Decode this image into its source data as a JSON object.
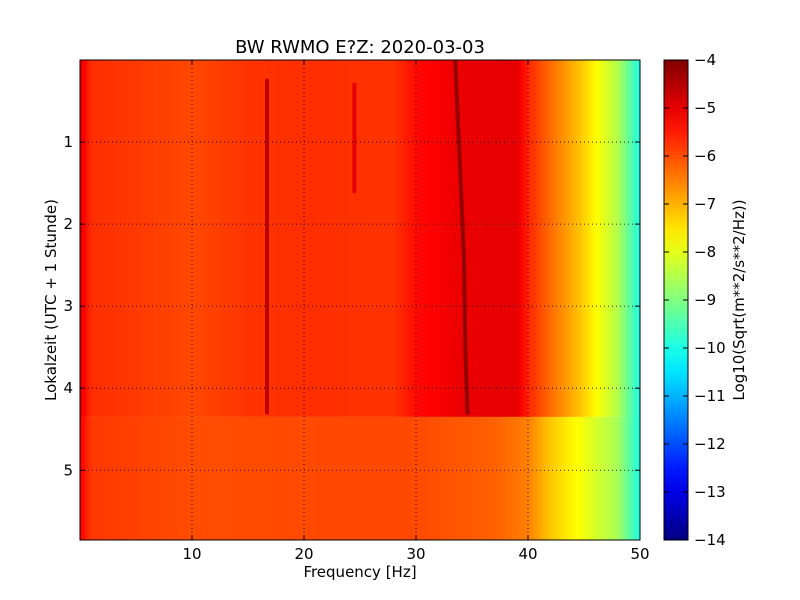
{
  "chart_data": {
    "type": "heatmap",
    "title": "BW RWMO E?Z: 2020-03-03",
    "xlabel": "Frequency [Hz]",
    "ylabel": "Lokalzeit (UTC + 1 Stunde)",
    "xlim": [
      0,
      50
    ],
    "ylim": [
      5.85,
      0.0
    ],
    "x_ticks": [
      10,
      20,
      30,
      40,
      50
    ],
    "y_ticks": [
      1,
      2,
      3,
      4,
      5
    ],
    "grid": true,
    "colormap": "jet",
    "colorbar": {
      "label": "Log10(Sqrt(m**2/s**2/Hz))",
      "range": [
        -14,
        -4
      ],
      "ticks": [
        -4,
        -5,
        -6,
        -7,
        -8,
        -9,
        -10,
        -11,
        -12,
        -13,
        -14
      ]
    },
    "frequency_profile_hz": [
      {
        "hz": 0.0,
        "value": -5.0
      },
      {
        "hz": 1.0,
        "value": -5.7
      },
      {
        "hz": 10.0,
        "value": -5.95
      },
      {
        "hz": 15.0,
        "value": -5.75
      },
      {
        "hz": 20.0,
        "value": -5.7
      },
      {
        "hz": 28.0,
        "value": -5.75
      },
      {
        "hz": 30.0,
        "value": -5.35
      },
      {
        "hz": 34.0,
        "value": -5.05
      },
      {
        "hz": 39.0,
        "value": -5.0
      },
      {
        "hz": 40.0,
        "value": -5.6
      },
      {
        "hz": 42.0,
        "value": -6.3
      },
      {
        "hz": 45.0,
        "value": -7.3
      },
      {
        "hz": 48.0,
        "value": -8.5
      },
      {
        "hz": 50.0,
        "value": -10.0
      }
    ],
    "late_profile_hz": [
      {
        "hz": 0.0,
        "value": -5.2
      },
      {
        "hz": 1.0,
        "value": -5.8
      },
      {
        "hz": 10.0,
        "value": -6.0
      },
      {
        "hz": 29.0,
        "value": -5.95
      },
      {
        "hz": 37.0,
        "value": -6.2
      },
      {
        "hz": 40.0,
        "value": -6.5
      },
      {
        "hz": 42.0,
        "value": -7.2
      },
      {
        "hz": 45.0,
        "value": -7.9
      },
      {
        "hz": 48.0,
        "value": -8.6
      },
      {
        "hz": 50.0,
        "value": -10.0
      }
    ],
    "regime_change_hour": 4.35,
    "spectral_lines": [
      {
        "label": "16.7 Hz",
        "hz": 16.7,
        "hours": [
          0.25,
          4.3
        ],
        "value": -4.6
      },
      {
        "label": "24.5 Hz",
        "hz": 24.5,
        "hours": [
          0.3,
          1.6
        ],
        "value": -5.0
      },
      {
        "label": "drifting",
        "hz_by_hour": [
          [
            0.0,
            33.5
          ],
          [
            0.6,
            33.7
          ],
          [
            1.5,
            34.0
          ],
          [
            2.5,
            34.3
          ],
          [
            3.5,
            34.4
          ],
          [
            4.3,
            34.6
          ]
        ],
        "value": -4.2
      }
    ]
  }
}
